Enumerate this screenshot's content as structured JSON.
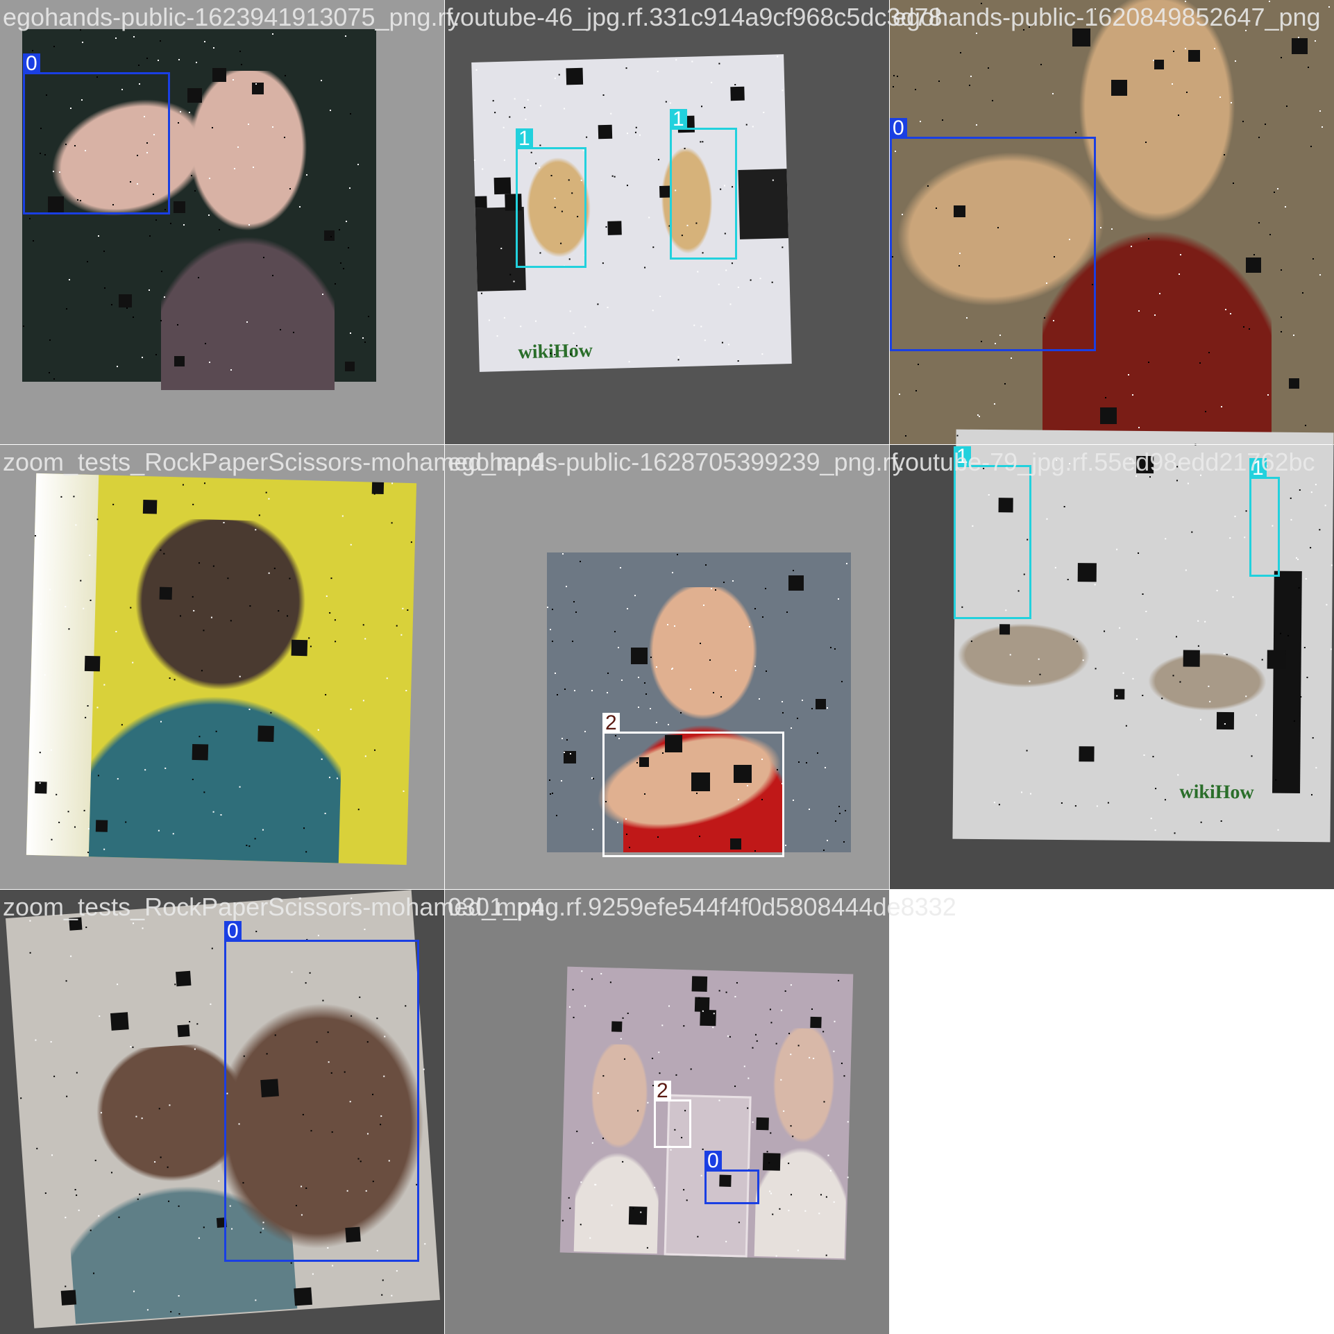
{
  "tiles": [
    {
      "caption": "egohands-public-1623941913075_png.rf.",
      "colors": {
        "bg": "#9b9b9b",
        "photo": "#1f2b27",
        "scene": "#3b4f44",
        "skin": "#d8b2a5",
        "shirt": "#5a4a52"
      },
      "boxes": [
        {
          "label": "0",
          "class_id": 0
        }
      ]
    },
    {
      "caption": "youtube-46_jpg.rf.331c914a9cf968c5dc3d78",
      "colors": {
        "bg": "#545454",
        "photo": "#e3e3e9",
        "scene": "#c9c2a0",
        "skin": "#d6b27a",
        "shirt": "#1e1e1e"
      },
      "boxes": [
        {
          "label": "1",
          "class_id": 1
        },
        {
          "label": "1",
          "class_id": 1
        }
      ],
      "watermark": "wikiHow"
    },
    {
      "caption": "egohands-public-1620849852647_png",
      "colors": {
        "bg": "#7a6a52",
        "photo": "#7e7058",
        "scene": "#a48f6a",
        "skin": "#caa57a",
        "shirt": "#7a1d16"
      },
      "boxes": [
        {
          "label": "0",
          "class_id": 0
        }
      ]
    },
    {
      "caption": "zoom_tests_RockPaperScissors-mohamed_mp4",
      "colors": {
        "bg": "#9b9b9b",
        "photo": "#d9d13a",
        "scene": "#5a5d2d",
        "skin": "#4a3a30",
        "shirt": "#2f6e7a"
      },
      "boxes": []
    },
    {
      "caption": "egohands-public-1628705399239_png.rf.",
      "colors": {
        "bg": "#9b9b9b",
        "photo": "#6d7884",
        "scene": "#8a96a0",
        "skin": "#e0b090",
        "shirt": "#c01818"
      },
      "boxes": [
        {
          "label": "2",
          "class_id": 2
        }
      ]
    },
    {
      "caption": "youtube-79_jpg.rf.55ed98edd21762bc",
      "colors": {
        "bg": "#4a4a4a",
        "photo": "#d4d4d4",
        "scene": "#b8b8b8",
        "skin": "#a89a88",
        "shirt": "#121212"
      },
      "boxes": [
        {
          "label": "1",
          "class_id": 1
        },
        {
          "label": "1",
          "class_id": 1
        }
      ],
      "watermark": "wikiHow"
    },
    {
      "caption": "zoom_tests_RockPaperScissors-mohamed_mp4",
      "colors": {
        "bg": "#4c4c4c",
        "photo": "#c6c2bc",
        "scene": "#dcd8d4",
        "skin": "#6a4e40",
        "shirt": "#5f7f87"
      },
      "boxes": [
        {
          "label": "0",
          "class_id": 0
        }
      ]
    },
    {
      "caption": "0301_png.rf.9259efe544f4f0d5808444de8332",
      "colors": {
        "bg": "#818181",
        "photo": "#b7a8b6",
        "scene": "#d0c4cc",
        "skin": "#d8b8a8",
        "shirt": "#e6e0dc"
      },
      "boxes": [
        {
          "label": "2",
          "class_id": 2
        },
        {
          "label": "0",
          "class_id": 0
        }
      ]
    }
  ],
  "classes": {
    "0": "#1a3fe3",
    "1": "#22d1dd",
    "2": "#ffffff"
  },
  "label_text_colors": {
    "0": "#ffffff",
    "1": "#ffffff",
    "2": "#5a1a12"
  },
  "empty_cell": "#ffffff"
}
